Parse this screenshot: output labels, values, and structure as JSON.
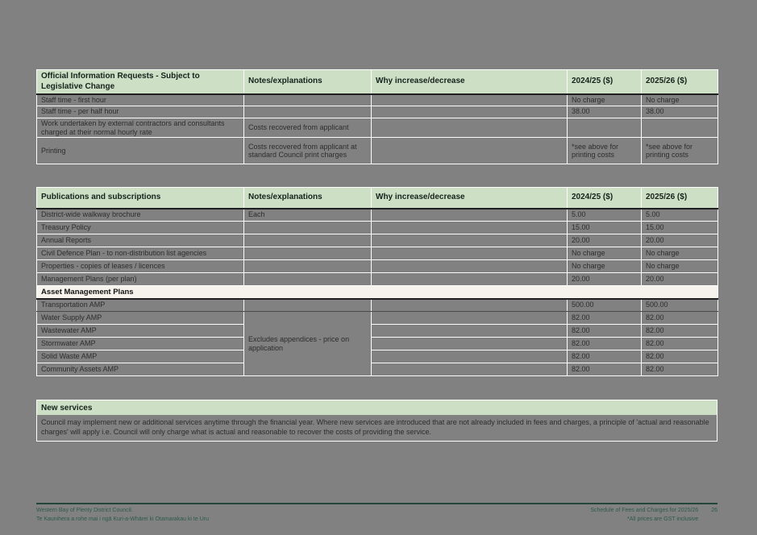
{
  "theme": {
    "background": "#818181",
    "header_green": "#cde0c6",
    "subheader_cream": "#f5f3ec",
    "gridline_white": "#fdfdfd",
    "footer_teal": "#2d5a4d"
  },
  "table1": {
    "headers": [
      "Official Information Requests - Subject to Legislative Change",
      "Notes/explanations",
      "Why increase/decrease",
      "2024/25 ($)",
      "2025/26 ($)"
    ],
    "rows": [
      [
        "Staff time - first hour",
        "",
        "",
        "No charge",
        "No charge"
      ],
      [
        "Staff time - per half hour",
        "",
        "",
        "38.00",
        "38.00"
      ],
      [
        "Work undertaken by external contractors and consultants charged at their normal hourly rate",
        "Costs recovered from applicant",
        "",
        "",
        ""
      ],
      [
        "Printing",
        "Costs recovered from applicant at standard Council print charges",
        "",
        "*see above for printing costs",
        "*see above for printing costs"
      ]
    ]
  },
  "table2": {
    "headers": [
      "Publications and subscriptions",
      "Notes/explanations",
      "Why increase/decrease",
      "2024/25 ($)",
      "2025/26 ($)"
    ],
    "rows": [
      [
        "District-wide walkway brochure",
        "Each",
        "",
        "5.00",
        "5.00"
      ],
      [
        "Treasury Policy",
        "",
        "",
        "15.00",
        "15.00"
      ],
      [
        "Annual Reports",
        "",
        "",
        "20.00",
        "20.00"
      ],
      [
        "Civil Defence Plan - to non-distribution list agencies",
        "",
        "",
        "No charge",
        "No charge"
      ],
      [
        "Properties - copies of leases / licences",
        "",
        "",
        "No charge",
        "No charge"
      ],
      [
        "Management Plans (per plan)",
        "",
        "",
        "20.00",
        "20.00"
      ]
    ],
    "subheader": "Asset Management Plans",
    "amp_note": "Excludes appendices - price on application",
    "amp_rows": [
      [
        "Transportation AMP",
        "500.00",
        "500.00"
      ],
      [
        "Water Supply AMP",
        "82.00",
        "82.00"
      ],
      [
        "Wastewater AMP",
        "82.00",
        "82.00"
      ],
      [
        "Stormwater AMP",
        "82.00",
        "82.00"
      ],
      [
        "Solid Waste AMP",
        "82.00",
        "82.00"
      ],
      [
        "Community Assets AMP",
        "82.00",
        "82.00"
      ]
    ]
  },
  "new_services": {
    "title": "New services",
    "body": "Council may implement new or additional services anytime through the financial year. Where new services are introduced that are not already included in fees and charges, a principle of 'actual and reasonable charges' will apply i.e. Council will only charge what is actual and reasonable to recover the costs of providing the service."
  },
  "footer": {
    "left_line1": "Western Bay of Plenty District Council.",
    "left_line2": "Te Kaunihera a rohe mai i ngā Kuri-a-Whārei ki Otamarakau ki te Uru",
    "right_line1": "Schedule of Fees and Charges for 2025/26",
    "right_line2": "*All prices are GST inclusive",
    "page_number": "26"
  }
}
